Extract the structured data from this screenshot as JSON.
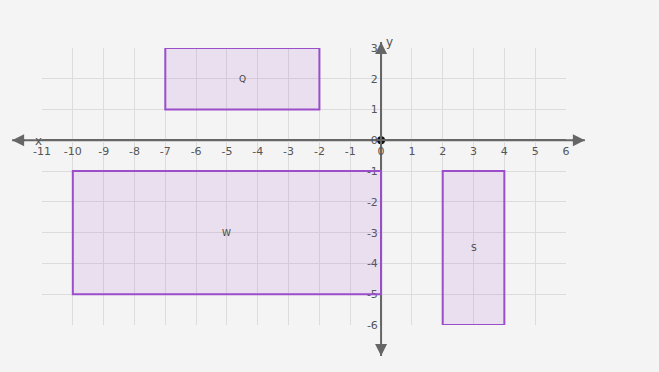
{
  "chart_data": {
    "type": "rectangles",
    "x_label": "x",
    "y_label": "y",
    "rectangles": [
      {
        "label": "Q",
        "x": [
          -7,
          -2
        ],
        "y": [
          1,
          3
        ]
      },
      {
        "label": "W",
        "x": [
          -10,
          0
        ],
        "y": [
          -5,
          -1
        ]
      },
      {
        "label": "S",
        "x": [
          2,
          4
        ],
        "y": [
          -6,
          -1
        ]
      }
    ],
    "color": "#9b4dca",
    "xlim": [
      -11,
      6
    ],
    "xticks": [
      -11,
      -10,
      -9,
      -8,
      -7,
      -6,
      -5,
      -4,
      -3,
      -2,
      -1,
      0,
      1,
      2,
      3,
      4,
      5,
      6
    ],
    "ylim": [
      -6,
      3
    ],
    "yticks": [
      -6,
      -5,
      -4,
      -3,
      -2,
      -1,
      0,
      1,
      2,
      3
    ],
    "grid": true,
    "origin": [
      0,
      0
    ]
  }
}
